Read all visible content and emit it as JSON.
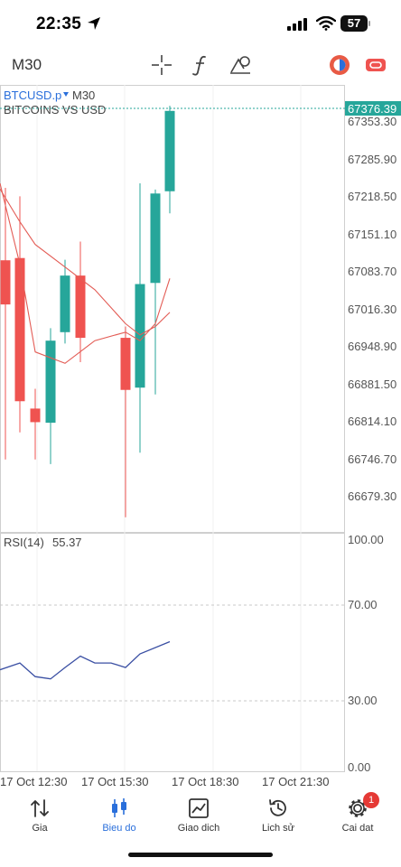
{
  "status": {
    "time": "22:35",
    "battery": "57",
    "battery_level": 0.57
  },
  "toolbar": {
    "timeframe": "M30"
  },
  "chart": {
    "symbol": "BTCUSD.p",
    "timeframe": "M30",
    "description": "BITCOINS VS USD",
    "price_scale": [
      "67353.30",
      "67285.90",
      "67218.50",
      "67151.10",
      "67083.70",
      "67016.30",
      "66948.90",
      "66881.50",
      "66814.10",
      "66746.70",
      "66679.30"
    ],
    "current_price": "67376.39",
    "rsi_label": "RSI(14)",
    "rsi_value": "55.37",
    "rsi_scale": [
      "100.00",
      "70.00",
      "30.00",
      "0.00"
    ],
    "time_labels": [
      "17 Oct 12:30",
      "17 Oct 15:30",
      "17 Oct 18:30",
      "17 Oct 21:30"
    ]
  },
  "chart_data": {
    "type": "candlestick",
    "y_range": [
      66640,
      67390
    ],
    "candles": [
      {
        "open": 67112,
        "close": 67034,
        "high": 67240,
        "low": 66760
      },
      {
        "open": 67116,
        "close": 66863,
        "high": 67225,
        "low": 66808
      },
      {
        "open": 66850,
        "close": 66826,
        "high": 66885,
        "low": 66760
      },
      {
        "open": 66825,
        "close": 66970,
        "high": 66992,
        "low": 66752
      },
      {
        "open": 66985,
        "close": 67085,
        "high": 67113,
        "low": 66965
      },
      {
        "open": 67085,
        "close": 66975,
        "high": 67145,
        "low": 66932
      },
      {
        "open": 66975,
        "close": 66883,
        "high": 66995,
        "low": 66658
      },
      {
        "open": 66887,
        "close": 67070,
        "high": 67248,
        "low": 66772
      },
      {
        "open": 67072,
        "close": 67230,
        "high": 67237,
        "low": 66875
      },
      {
        "open": 67234,
        "close": 67376,
        "high": 67385,
        "low": 67195
      }
    ],
    "ma_fast": [
      67248,
      67105,
      66950,
      66930,
      66970,
      66985,
      66970,
      67000,
      67080
    ],
    "ma_slow": [
      67238,
      67180,
      67140,
      67100,
      67060,
      67000,
      66980,
      66995,
      67020
    ],
    "rsi_range": [
      0,
      100
    ],
    "rsi": [
      43,
      46,
      40,
      39,
      44,
      49,
      46,
      46,
      44,
      50,
      55.37
    ]
  },
  "nav": [
    {
      "label": "Gia",
      "icon": "price-arrows-icon",
      "active": false
    },
    {
      "label": "Bieu do",
      "icon": "candlestick-icon",
      "active": true
    },
    {
      "label": "Giao dich",
      "icon": "trade-chart-icon",
      "active": false
    },
    {
      "label": "Lich sử",
      "icon": "history-clock-icon",
      "active": false
    },
    {
      "label": "Cai dat",
      "icon": "gear-icon",
      "active": false,
      "badge": "1"
    }
  ],
  "colors": {
    "bull": "#26a69a",
    "bear": "#ef5350",
    "ma_line": "#e35c55",
    "rsi_line": "#3a4fa3",
    "accent": "#2a6fdb",
    "badge": "#e53935"
  }
}
